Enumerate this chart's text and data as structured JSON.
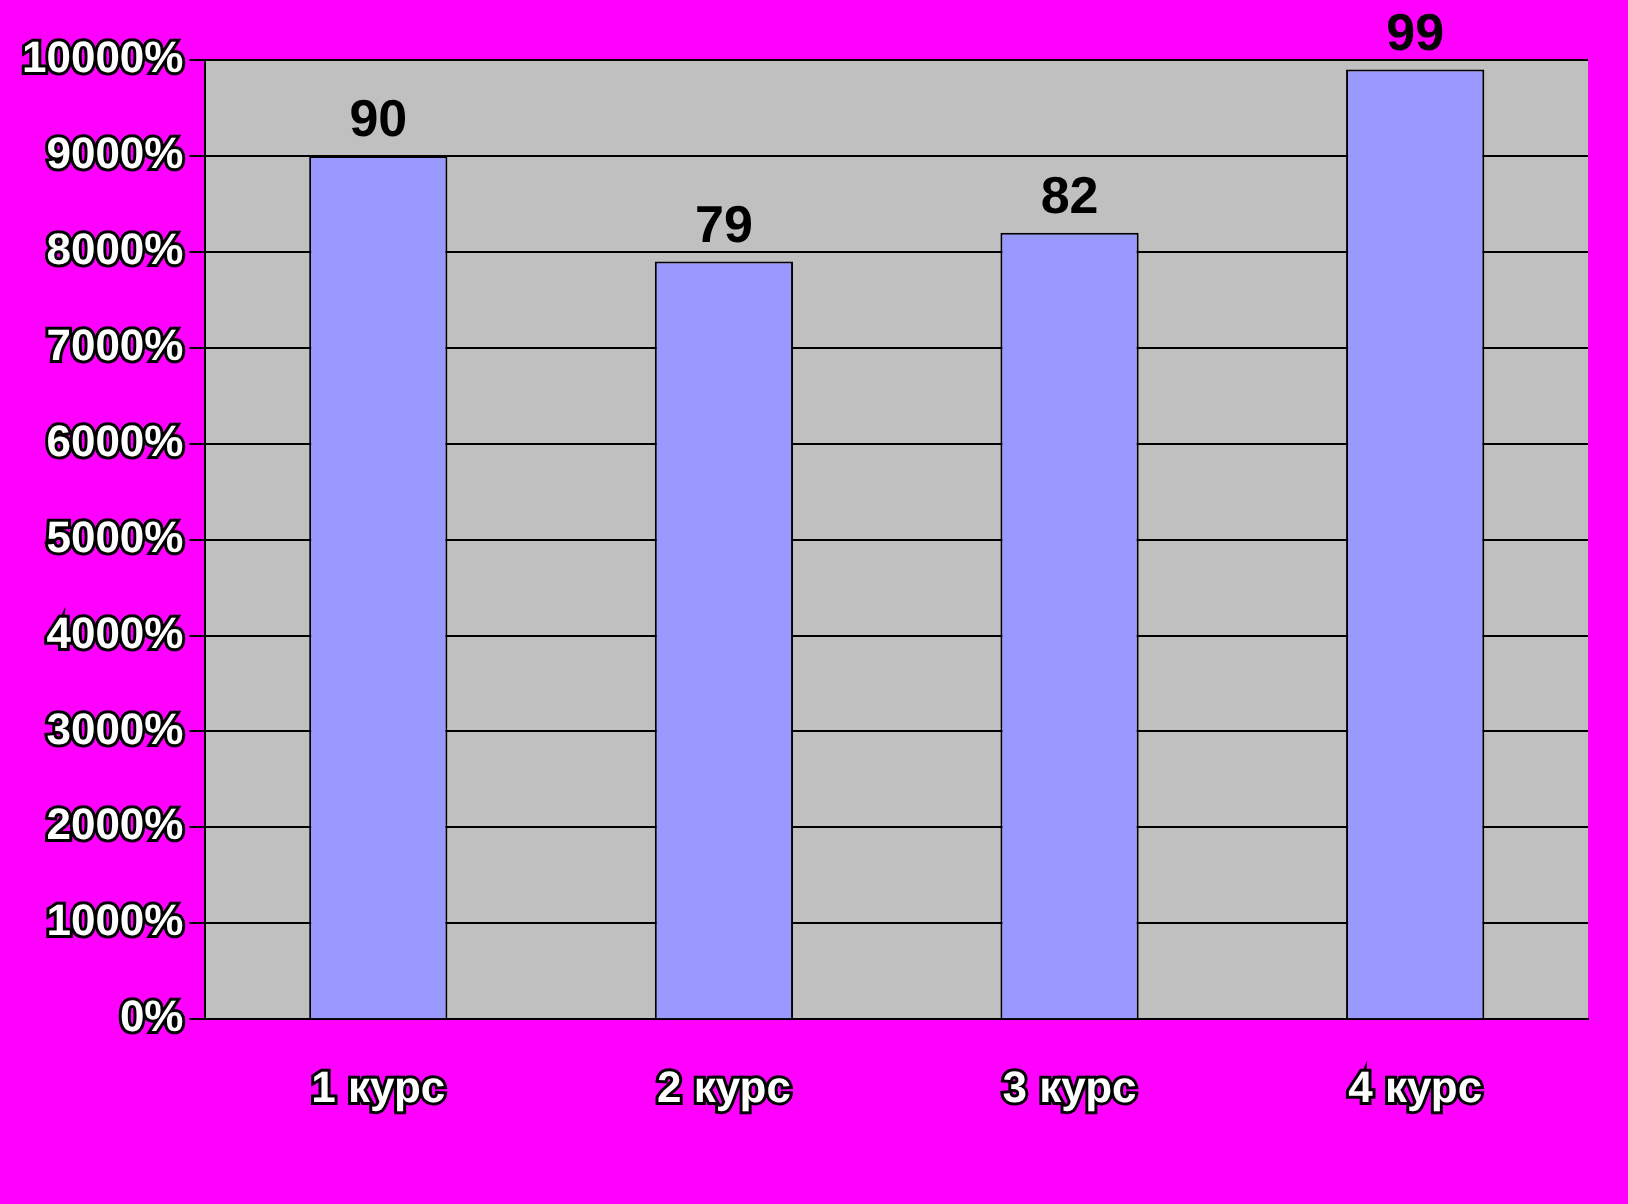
{
  "chart_data": {
    "type": "bar",
    "categories": [
      "1 курс",
      "2 курс",
      "3 курс",
      "4 курс"
    ],
    "values": [
      90,
      79,
      82,
      99
    ],
    "color": "#9999ff",
    "data_labels": true,
    "ylim": [
      0,
      100
    ],
    "yticks": [
      {
        "value": 0,
        "label": "0%"
      },
      {
        "value": 10,
        "label": "1000%"
      },
      {
        "value": 20,
        "label": "2000%"
      },
      {
        "value": 30,
        "label": "3000%"
      },
      {
        "value": 40,
        "label": "4000%"
      },
      {
        "value": 50,
        "label": "5000%"
      },
      {
        "value": 60,
        "label": "6000%"
      },
      {
        "value": 70,
        "label": "7000%"
      },
      {
        "value": 80,
        "label": "8000%"
      },
      {
        "value": 90,
        "label": "9000%"
      },
      {
        "value": 100,
        "label": "10000%"
      }
    ],
    "grid": "y",
    "legend": false
  }
}
